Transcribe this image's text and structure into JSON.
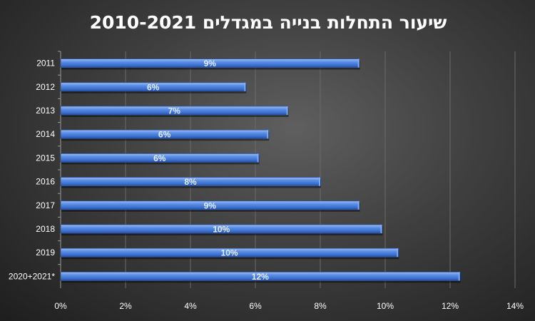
{
  "chart_data": {
    "type": "bar",
    "orientation": "horizontal",
    "title": "שיעור התחלות בנייה במגדלים 2010-2021",
    "categories": [
      "2011",
      "2012",
      "2013",
      "2014",
      "2015",
      "2016",
      "2017",
      "2018",
      "2019",
      "2020+2021*"
    ],
    "values": [
      9.2,
      5.7,
      7.0,
      6.4,
      6.1,
      8.0,
      9.2,
      9.9,
      10.4,
      12.3
    ],
    "data_labels": [
      "9%",
      "6%",
      "7%",
      "6%",
      "6%",
      "8%",
      "9%",
      "10%",
      "10%",
      "12%"
    ],
    "xlim": [
      0,
      14
    ],
    "x_ticks": [
      "0%",
      "2%",
      "4%",
      "6%",
      "8%",
      "10%",
      "12%",
      "14%"
    ],
    "xlabel": "",
    "ylabel": "",
    "grid": "vertical",
    "legend": "none",
    "colors": {
      "bar": "#4a7fdc",
      "bar_top": "#8fb4f2",
      "bar_dark": "#2c57a8",
      "background": "#3f3f3f",
      "gridline": "#6a6a6a",
      "text": "#ffffff"
    }
  }
}
